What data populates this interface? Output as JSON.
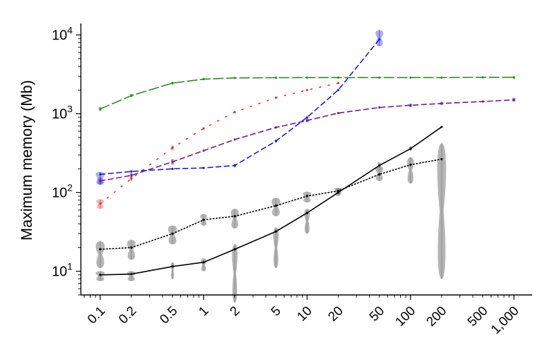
{
  "chart_data": {
    "type": "line",
    "ylabel": "Maximum memory (Mb)",
    "yscale": "log",
    "xscale": "log",
    "ylim": [
      5,
      14000
    ],
    "xlim": [
      0.065,
      1500
    ],
    "grid": false,
    "legend": "none",
    "yticks": [
      {
        "value": 10,
        "base": "10",
        "exp": "1"
      },
      {
        "value": 100,
        "base": "10",
        "exp": "2"
      },
      {
        "value": 1000,
        "base": "10",
        "exp": "3"
      },
      {
        "value": 10000,
        "base": "10",
        "exp": "4"
      }
    ],
    "xticks": [
      {
        "value": 0.1,
        "label": "0.1"
      },
      {
        "value": 0.2,
        "label": "0.2"
      },
      {
        "value": 0.5,
        "label": "0.5"
      },
      {
        "value": 1,
        "label": "1"
      },
      {
        "value": 2,
        "label": "2"
      },
      {
        "value": 5,
        "label": "5"
      },
      {
        "value": 10,
        "label": "10"
      },
      {
        "value": 20,
        "label": "20"
      },
      {
        "value": 50,
        "label": "50"
      },
      {
        "value": 100,
        "label": "100"
      },
      {
        "value": 200,
        "label": "200"
      },
      {
        "value": 500,
        "label": "500"
      },
      {
        "value": 1000,
        "label": "1,000"
      }
    ],
    "series": [
      {
        "color": "#2e8b22",
        "dash": "long-dash",
        "x": [
          0.1,
          0.2,
          0.5,
          1,
          2,
          5,
          10,
          20,
          50,
          100,
          200,
          500,
          1000
        ],
        "y": [
          1150,
          1700,
          2450,
          2750,
          2850,
          2870,
          2880,
          2880,
          2880,
          2880,
          2880,
          2900,
          2900
        ],
        "violins": [
          {
            "x": 0.1,
            "lo": 1080,
            "hi": 1220,
            "w": 8
          },
          {
            "x": 0.2,
            "lo": 1620,
            "hi": 1780,
            "w": 6
          },
          {
            "x": 0.5,
            "lo": 2350,
            "hi": 2550,
            "w": 6
          },
          {
            "x": 1,
            "lo": 2680,
            "hi": 2820,
            "w": 5
          },
          {
            "x": 1000,
            "lo": 2780,
            "hi": 3020,
            "w": 6
          }
        ]
      },
      {
        "color": "#e03030",
        "dash": "sparse-dot",
        "x": [
          0.1,
          0.2,
          0.5,
          1,
          2,
          5,
          10,
          20
        ],
        "y": [
          72,
          150,
          370,
          650,
          1050,
          1600,
          2000,
          2450
        ],
        "violins": [
          {
            "x": 0.1,
            "lo": 62,
            "hi": 82,
            "w": 14
          },
          {
            "x": 0.2,
            "lo": 140,
            "hi": 162,
            "w": 5
          },
          {
            "x": 0.5,
            "lo": 345,
            "hi": 395,
            "w": 5
          }
        ]
      },
      {
        "color": "#6a1b9a",
        "dash": "dash",
        "x": [
          0.1,
          0.2,
          0.5,
          1,
          2,
          5,
          10,
          20,
          50,
          100,
          200,
          500,
          1000
        ],
        "y": [
          140,
          165,
          245,
          340,
          470,
          670,
          820,
          1020,
          1200,
          1280,
          1350,
          1430,
          1500
        ],
        "violins": [
          {
            "x": 0.1,
            "lo": 128,
            "hi": 154,
            "w": 12
          },
          {
            "x": 0.2,
            "lo": 155,
            "hi": 178,
            "w": 5
          },
          {
            "x": 0.5,
            "lo": 225,
            "hi": 265,
            "w": 7
          },
          {
            "x": 10,
            "lo": 780,
            "hi": 880,
            "w": 8
          },
          {
            "x": 100,
            "lo": 1220,
            "hi": 1340,
            "w": 8
          },
          {
            "x": 200,
            "lo": 1290,
            "hi": 1410,
            "w": 7
          },
          {
            "x": 1000,
            "lo": 1420,
            "hi": 1600,
            "w": 8
          }
        ]
      },
      {
        "color": "#1a1ad0",
        "dash": "dash",
        "x": [
          0.1,
          0.2,
          0.5,
          1,
          2,
          5,
          10,
          20,
          50
        ],
        "y": [
          170,
          185,
          200,
          205,
          220,
          450,
          900,
          2000,
          8800
        ],
        "violins": [
          {
            "x": 0.1,
            "lo": 125,
            "hi": 182,
            "w": 16
          },
          {
            "x": 2,
            "lo": 208,
            "hi": 232,
            "w": 4
          },
          {
            "x": 5,
            "lo": 430,
            "hi": 470,
            "w": 4
          },
          {
            "x": 50,
            "lo": 7200,
            "hi": 11500,
            "w": 14
          }
        ]
      },
      {
        "color": "#000000",
        "dash": "dot",
        "x": [
          0.1,
          0.2,
          0.5,
          1,
          2,
          5,
          10,
          20,
          50,
          100,
          200
        ],
        "y": [
          19,
          20,
          30,
          45,
          50,
          68,
          90,
          105,
          170,
          225,
          265
        ],
        "violins": [
          {
            "x": 0.1,
            "lo": 11,
            "hi": 24,
            "w": 16
          },
          {
            "x": 0.2,
            "lo": 14,
            "hi": 25,
            "w": 15
          },
          {
            "x": 0.5,
            "lo": 22,
            "hi": 38,
            "w": 16
          },
          {
            "x": 1,
            "lo": 38,
            "hi": 53,
            "w": 12
          },
          {
            "x": 2,
            "lo": 35,
            "hi": 62,
            "w": 14
          },
          {
            "x": 5,
            "lo": 50,
            "hi": 85,
            "w": 16
          },
          {
            "x": 10,
            "lo": 75,
            "hi": 102,
            "w": 15
          },
          {
            "x": 20,
            "lo": 95,
            "hi": 115,
            "w": 14
          },
          {
            "x": 50,
            "lo": 140,
            "hi": 215,
            "w": 14
          },
          {
            "x": 100,
            "lo": 130,
            "hi": 280,
            "w": 12
          },
          {
            "x": 200,
            "lo": 8,
            "hi": 420,
            "w": 16
          }
        ]
      },
      {
        "color": "#000000",
        "dash": "solid",
        "x": [
          0.1,
          0.2,
          0.5,
          1,
          2,
          5,
          10,
          20,
          50,
          100,
          200
        ],
        "y": [
          9,
          9.2,
          11.5,
          13,
          19,
          32,
          55,
          100,
          220,
          360,
          680
        ],
        "violins": [
          {
            "x": 0.1,
            "lo": 7.5,
            "hi": 10,
            "w": 16
          },
          {
            "x": 0.2,
            "lo": 7.5,
            "hi": 10,
            "w": 15
          },
          {
            "x": 0.5,
            "lo": 8,
            "hi": 13,
            "w": 6
          },
          {
            "x": 1,
            "lo": 10,
            "hi": 14.5,
            "w": 10
          },
          {
            "x": 2,
            "lo": 4,
            "hi": 22,
            "w": 10
          },
          {
            "x": 5,
            "lo": 11,
            "hi": 36,
            "w": 10
          },
          {
            "x": 10,
            "lo": 30,
            "hi": 62,
            "w": 10
          },
          {
            "x": 20,
            "lo": 90,
            "hi": 112,
            "w": 10
          },
          {
            "x": 50,
            "lo": 200,
            "hi": 240,
            "w": 7
          },
          {
            "x": 100,
            "lo": 340,
            "hi": 385,
            "w": 6
          }
        ]
      }
    ]
  }
}
